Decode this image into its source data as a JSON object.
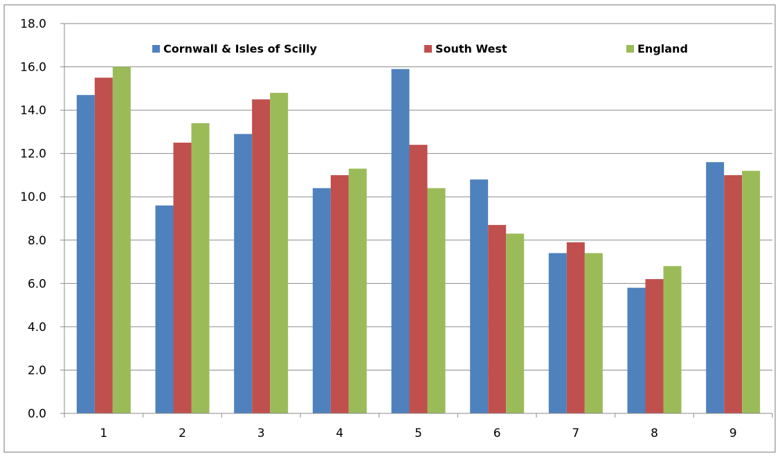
{
  "chart_data": {
    "type": "bar",
    "title": "",
    "xlabel": "",
    "ylabel": "",
    "categories": [
      "1",
      "2",
      "3",
      "4",
      "5",
      "6",
      "7",
      "8",
      "9"
    ],
    "series": [
      {
        "name": "Cornwall & Isles of Scilly",
        "color": "#4f81bd",
        "values": [
          14.7,
          9.6,
          12.9,
          10.4,
          15.9,
          10.8,
          7.4,
          5.8,
          11.6
        ]
      },
      {
        "name": "South West",
        "color": "#c0504d",
        "values": [
          15.5,
          12.5,
          14.5,
          11.0,
          12.4,
          8.7,
          7.9,
          6.2,
          11.0
        ]
      },
      {
        "name": "England",
        "color": "#9bbb59",
        "values": [
          16.0,
          13.4,
          14.8,
          11.3,
          10.4,
          8.3,
          7.4,
          6.8,
          11.2
        ]
      }
    ],
    "ylim": [
      0,
      18
    ],
    "yticks": [
      "0.0",
      "2.0",
      "4.0",
      "6.0",
      "8.0",
      "10.0",
      "12.0",
      "14.0",
      "16.0",
      "18.0"
    ],
    "grid": true,
    "legend_position": "top"
  }
}
